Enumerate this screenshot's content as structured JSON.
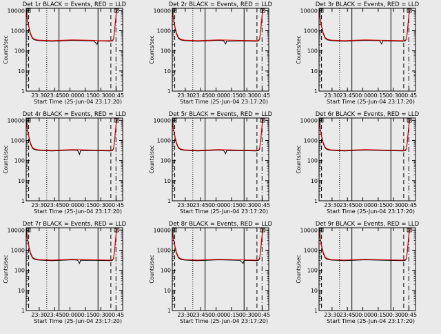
{
  "figure": {
    "background": "#eaeaea",
    "colors": {
      "events": "#000000",
      "lld": "#dd0000"
    }
  },
  "chart_data": [
    {
      "type": "line",
      "title": "Det 1r BLACK = Events, RED = LLD",
      "xlabel": "Start Time (25-Jun-04 23:17:20)",
      "ylabel": "Counts/sec",
      "xticks": [
        "23:30",
        "23:45",
        "00:00",
        "00:15",
        "00:30",
        "00:45"
      ],
      "yticks": [
        "1",
        "10",
        "100",
        "1000",
        "10000"
      ],
      "xlim_minutes_after_start": [
        0,
        94
      ],
      "ylim": [
        1,
        13000
      ],
      "yscale": "log",
      "series": [
        {
          "name": "Events",
          "color": "#000000",
          "x": [
            0,
            2,
            4,
            6,
            8,
            12,
            25,
            45,
            66,
            69,
            70,
            72,
            82,
            84,
            85,
            86,
            87,
            88,
            89
          ],
          "y": [
            8500,
            2000,
            700,
            420,
            350,
            320,
            300,
            330,
            310,
            210,
            300,
            310,
            300,
            310,
            360,
            800,
            3000,
            9000,
            10500
          ]
        },
        {
          "name": "LLD",
          "color": "#dd0000",
          "x": [
            0,
            2,
            4,
            6,
            8,
            12,
            25,
            45,
            66,
            70,
            82,
            84,
            85,
            86,
            87,
            88,
            89
          ],
          "y": [
            9000,
            2200,
            800,
            460,
            380,
            340,
            320,
            350,
            330,
            320,
            320,
            330,
            380,
            850,
            3200,
            9500,
            11000
          ]
        }
      ],
      "annotations": [
        "dashed lines",
        "dotted line",
        "solid lines",
        "dash-dot line"
      ]
    },
    {
      "type": "line",
      "title": "Det 2r BLACK = Events, RED = LLD",
      "xlabel": "Start Time (25-Jun-04 23:17:20)",
      "ylabel": "Counts/sec",
      "xticks": [
        "23:30",
        "23:45",
        "00:00",
        "00:15",
        "00:30",
        "00:45"
      ],
      "yticks": [
        "1",
        "10",
        "100",
        "1000",
        "10000"
      ],
      "xlim_minutes_after_start": [
        0,
        94
      ],
      "ylim": [
        1,
        13000
      ],
      "yscale": "log",
      "series": [
        {
          "name": "Events",
          "color": "#000000",
          "x": [
            0,
            2,
            4,
            6,
            8,
            12,
            25,
            45,
            50,
            52,
            53,
            66,
            82,
            84,
            85,
            86,
            87,
            88,
            89
          ],
          "y": [
            8500,
            2000,
            700,
            420,
            350,
            320,
            300,
            330,
            320,
            220,
            300,
            310,
            300,
            310,
            360,
            800,
            3000,
            9000,
            10500
          ]
        },
        {
          "name": "LLD",
          "color": "#dd0000",
          "x": [
            0,
            2,
            4,
            6,
            8,
            12,
            25,
            45,
            66,
            82,
            84,
            85,
            86,
            87,
            88,
            89
          ],
          "y": [
            9000,
            2200,
            800,
            460,
            380,
            340,
            320,
            350,
            330,
            320,
            330,
            380,
            850,
            3200,
            9500,
            11000
          ]
        }
      ],
      "annotations": [
        "dashed lines",
        "dotted line",
        "solid lines",
        "dash-dot line"
      ]
    },
    {
      "type": "line",
      "title": "Det 3r BLACK = Events, RED = LLD",
      "xlabel": "Start Time (25-Jun-04 23:17:20)",
      "ylabel": "Counts/sec",
      "xticks": [
        "23:30",
        "23:45",
        "00:00",
        "00:15",
        "00:30",
        "00:45"
      ],
      "yticks": [
        "1",
        "10",
        "100",
        "1000",
        "10000"
      ],
      "xlim_minutes_after_start": [
        0,
        94
      ],
      "ylim": [
        1,
        13000
      ],
      "yscale": "log",
      "series": [
        {
          "name": "Events",
          "color": "#000000",
          "x": [
            0,
            2,
            4,
            6,
            8,
            12,
            25,
            45,
            59,
            61,
            62,
            66,
            82,
            84,
            85,
            86,
            87,
            88,
            89
          ],
          "y": [
            8500,
            2000,
            700,
            420,
            350,
            320,
            300,
            330,
            320,
            220,
            310,
            310,
            300,
            310,
            360,
            800,
            3000,
            9000,
            10500
          ]
        },
        {
          "name": "LLD",
          "color": "#dd0000",
          "x": [
            0,
            2,
            4,
            6,
            8,
            12,
            25,
            45,
            66,
            82,
            84,
            85,
            86,
            87,
            88,
            89
          ],
          "y": [
            9000,
            2200,
            800,
            460,
            380,
            340,
            320,
            350,
            330,
            320,
            330,
            380,
            850,
            3200,
            9500,
            11000
          ]
        }
      ],
      "annotations": [
        "dashed lines",
        "dotted line",
        "solid lines",
        "dash-dot line"
      ]
    },
    {
      "type": "line",
      "title": "Det 4r BLACK = Events, RED = LLD",
      "xlabel": "Start Time (25-Jun-04 23:17:20)",
      "ylabel": "Counts/sec",
      "xticks": [
        "23:30",
        "23:45",
        "00:00",
        "00:15",
        "00:30",
        "00:45"
      ],
      "yticks": [
        "1",
        "10",
        "100",
        "1000",
        "10000"
      ],
      "xlim_minutes_after_start": [
        0,
        94
      ],
      "ylim": [
        1,
        13000
      ],
      "yscale": "log",
      "series": [
        {
          "name": "Events",
          "color": "#000000",
          "x": [
            0,
            2,
            4,
            6,
            8,
            12,
            25,
            45,
            50,
            52,
            53,
            66,
            82,
            84,
            85,
            86,
            87,
            88,
            89
          ],
          "y": [
            8500,
            2000,
            700,
            420,
            350,
            320,
            300,
            330,
            320,
            200,
            310,
            310,
            300,
            310,
            360,
            800,
            3000,
            9000,
            10500
          ]
        },
        {
          "name": "LLD",
          "color": "#dd0000",
          "x": [
            0,
            2,
            4,
            6,
            8,
            12,
            25,
            45,
            66,
            82,
            84,
            85,
            86,
            87,
            88,
            89
          ],
          "y": [
            9000,
            2200,
            800,
            460,
            380,
            340,
            320,
            350,
            330,
            320,
            330,
            380,
            850,
            3200,
            9500,
            11000
          ]
        }
      ],
      "annotations": [
        "dashed lines",
        "dotted line",
        "solid lines",
        "dash-dot line"
      ]
    },
    {
      "type": "line",
      "title": "Det 5r BLACK = Events, RED = LLD",
      "xlabel": "Start Time (25-Jun-04 23:17:20)",
      "ylabel": "Counts/sec",
      "xticks": [
        "23:30",
        "23:45",
        "00:00",
        "00:15",
        "00:30",
        "00:45"
      ],
      "yticks": [
        "1",
        "10",
        "100",
        "1000",
        "10000"
      ],
      "xlim_minutes_after_start": [
        0,
        94
      ],
      "ylim": [
        1,
        13000
      ],
      "yscale": "log",
      "series": [
        {
          "name": "Events",
          "color": "#000000",
          "x": [
            0,
            2,
            4,
            6,
            8,
            12,
            25,
            45,
            50,
            52,
            53,
            66,
            82,
            84,
            85,
            86,
            87,
            88,
            89
          ],
          "y": [
            8500,
            2000,
            700,
            420,
            350,
            320,
            300,
            330,
            320,
            220,
            310,
            310,
            300,
            310,
            360,
            800,
            3000,
            9000,
            10500
          ]
        },
        {
          "name": "LLD",
          "color": "#dd0000",
          "x": [
            0,
            2,
            4,
            6,
            8,
            12,
            25,
            45,
            66,
            82,
            84,
            85,
            86,
            87,
            88,
            89
          ],
          "y": [
            9000,
            2200,
            800,
            460,
            380,
            340,
            320,
            350,
            330,
            320,
            330,
            380,
            850,
            3200,
            9500,
            11000
          ]
        }
      ],
      "annotations": [
        "dashed lines",
        "dotted line",
        "solid lines",
        "dash-dot line"
      ]
    },
    {
      "type": "line",
      "title": "Det 6r BLACK = Events, RED = LLD",
      "xlabel": "Start Time (25-Jun-04 23:17:20)",
      "ylabel": "Counts/sec",
      "xticks": [
        "23:30",
        "23:45",
        "00:00",
        "00:15",
        "00:30",
        "00:45"
      ],
      "yticks": [
        "1",
        "10",
        "100",
        "1000",
        "10000"
      ],
      "xlim_minutes_after_start": [
        0,
        94
      ],
      "ylim": [
        1,
        13000
      ],
      "yscale": "log",
      "series": [
        {
          "name": "Events",
          "color": "#000000",
          "x": [
            0,
            2,
            4,
            6,
            8,
            12,
            25,
            45,
            66,
            82,
            84,
            85,
            86,
            87,
            88,
            89
          ],
          "y": [
            8500,
            2000,
            700,
            420,
            350,
            320,
            300,
            330,
            310,
            300,
            310,
            360,
            800,
            3000,
            9000,
            10500
          ]
        },
        {
          "name": "LLD",
          "color": "#dd0000",
          "x": [
            0,
            2,
            4,
            6,
            8,
            12,
            25,
            45,
            66,
            82,
            84,
            85,
            86,
            87,
            88,
            89
          ],
          "y": [
            9000,
            2200,
            800,
            460,
            380,
            340,
            320,
            350,
            330,
            320,
            330,
            380,
            850,
            3200,
            9500,
            11000
          ]
        }
      ],
      "annotations": [
        "dashed lines",
        "dotted line",
        "solid lines",
        "dash-dot line"
      ]
    },
    {
      "type": "line",
      "title": "Det 7r BLACK = Events, RED = LLD",
      "xlabel": "Start Time (25-Jun-04 23:17:20)",
      "ylabel": "Counts/sec",
      "xticks": [
        "23:30",
        "23:45",
        "00:00",
        "00:15",
        "00:30",
        "00:45"
      ],
      "yticks": [
        "1",
        "10",
        "100",
        "1000",
        "10000"
      ],
      "xlim_minutes_after_start": [
        0,
        94
      ],
      "ylim": [
        1,
        13000
      ],
      "yscale": "log",
      "series": [
        {
          "name": "Events",
          "color": "#000000",
          "x": [
            0,
            2,
            4,
            6,
            8,
            12,
            25,
            45,
            50,
            52,
            53,
            66,
            82,
            84,
            85,
            86,
            87,
            88,
            89
          ],
          "y": [
            8500,
            2000,
            700,
            420,
            350,
            320,
            300,
            330,
            320,
            220,
            310,
            310,
            300,
            310,
            360,
            800,
            3000,
            9000,
            10500
          ]
        },
        {
          "name": "LLD",
          "color": "#dd0000",
          "x": [
            0,
            2,
            4,
            6,
            8,
            12,
            25,
            45,
            66,
            82,
            84,
            85,
            86,
            87,
            88,
            89
          ],
          "y": [
            9000,
            2200,
            800,
            460,
            380,
            340,
            320,
            350,
            330,
            320,
            330,
            380,
            850,
            3200,
            9500,
            11000
          ]
        }
      ],
      "annotations": [
        "dashed lines",
        "dotted line",
        "solid lines",
        "dash-dot line"
      ]
    },
    {
      "type": "line",
      "title": "Det 8r BLACK = Events, RED = LLD",
      "xlabel": "Start Time (25-Jun-04 23:17:20)",
      "ylabel": "Counts/sec",
      "xticks": [
        "23:30",
        "23:45",
        "00:00",
        "00:15",
        "00:30",
        "00:45"
      ],
      "yticks": [
        "1",
        "10",
        "100",
        "1000",
        "10000"
      ],
      "xlim_minutes_after_start": [
        0,
        94
      ],
      "ylim": [
        1,
        13000
      ],
      "yscale": "log",
      "series": [
        {
          "name": "Events",
          "color": "#000000",
          "x": [
            0,
            2,
            4,
            6,
            8,
            12,
            25,
            45,
            66,
            69,
            70,
            72,
            82,
            84,
            85,
            86,
            87,
            88,
            89
          ],
          "y": [
            8500,
            2000,
            700,
            420,
            350,
            320,
            300,
            330,
            310,
            220,
            300,
            310,
            300,
            310,
            360,
            800,
            3000,
            9000,
            10500
          ]
        },
        {
          "name": "LLD",
          "color": "#dd0000",
          "x": [
            0,
            2,
            4,
            6,
            8,
            12,
            25,
            45,
            66,
            82,
            84,
            85,
            86,
            87,
            88,
            89
          ],
          "y": [
            9000,
            2200,
            800,
            460,
            380,
            340,
            320,
            350,
            330,
            320,
            330,
            380,
            850,
            3200,
            9500,
            11000
          ]
        }
      ],
      "annotations": [
        "dashed lines",
        "dotted line",
        "solid lines",
        "dash-dot line"
      ]
    },
    {
      "type": "line",
      "title": "Det 9r BLACK = Events, RED = LLD",
      "xlabel": "Start Time (25-Jun-04 23:17:20)",
      "ylabel": "Counts/sec",
      "xticks": [
        "23:30",
        "23:45",
        "00:00",
        "00:15",
        "00:30",
        "00:45"
      ],
      "yticks": [
        "1",
        "10",
        "100",
        "1000",
        "10000"
      ],
      "xlim_minutes_after_start": [
        0,
        94
      ],
      "ylim": [
        1,
        13000
      ],
      "yscale": "log",
      "series": [
        {
          "name": "Events",
          "color": "#000000",
          "x": [
            0,
            2,
            4,
            6,
            8,
            12,
            25,
            45,
            66,
            82,
            84,
            85,
            86,
            87,
            88,
            89
          ],
          "y": [
            8500,
            2000,
            700,
            420,
            350,
            320,
            300,
            330,
            310,
            300,
            310,
            360,
            800,
            3000,
            9000,
            10500
          ]
        },
        {
          "name": "LLD",
          "color": "#dd0000",
          "x": [
            0,
            2,
            4,
            6,
            8,
            12,
            25,
            45,
            66,
            82,
            84,
            85,
            86,
            87,
            88,
            89
          ],
          "y": [
            9000,
            2200,
            800,
            460,
            380,
            340,
            320,
            350,
            330,
            320,
            330,
            380,
            850,
            3200,
            9500,
            11000
          ]
        }
      ],
      "annotations": [
        "dashed lines",
        "dotted line",
        "solid lines",
        "dash-dot line"
      ]
    }
  ]
}
